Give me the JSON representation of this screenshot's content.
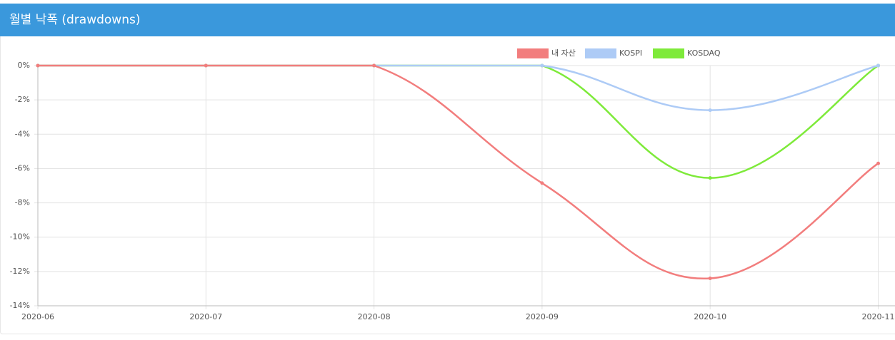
{
  "header": {
    "title": "월별 낙폭 (drawdowns)"
  },
  "chart_data": {
    "type": "line",
    "categories": [
      "2020-06",
      "2020-07",
      "2020-08",
      "2020-09",
      "2020-10",
      "2020-11"
    ],
    "series": [
      {
        "name": "내 자산",
        "color": "#f27d7d",
        "values": [
          0,
          0,
          0,
          -6.85,
          -12.4,
          -5.7
        ]
      },
      {
        "name": "KOSPI",
        "color": "#adcbf6",
        "values": [
          0,
          0,
          0,
          0,
          -2.6,
          0
        ]
      },
      {
        "name": "KOSDAQ",
        "color": "#7eea3a",
        "values": [
          0,
          0,
          0,
          0,
          -6.55,
          0
        ]
      }
    ],
    "ylim": [
      -14,
      0
    ],
    "yticks": [
      {
        "value": 0,
        "label": "0%"
      },
      {
        "value": -2,
        "label": "-2%"
      },
      {
        "value": -4,
        "label": "-4%"
      },
      {
        "value": -6,
        "label": "-6%"
      },
      {
        "value": -8,
        "label": "-8%"
      },
      {
        "value": -10,
        "label": "-10%"
      },
      {
        "value": -12,
        "label": "-12%"
      },
      {
        "value": -14,
        "label": "-14%"
      }
    ],
    "grid": true,
    "legend": "top"
  }
}
